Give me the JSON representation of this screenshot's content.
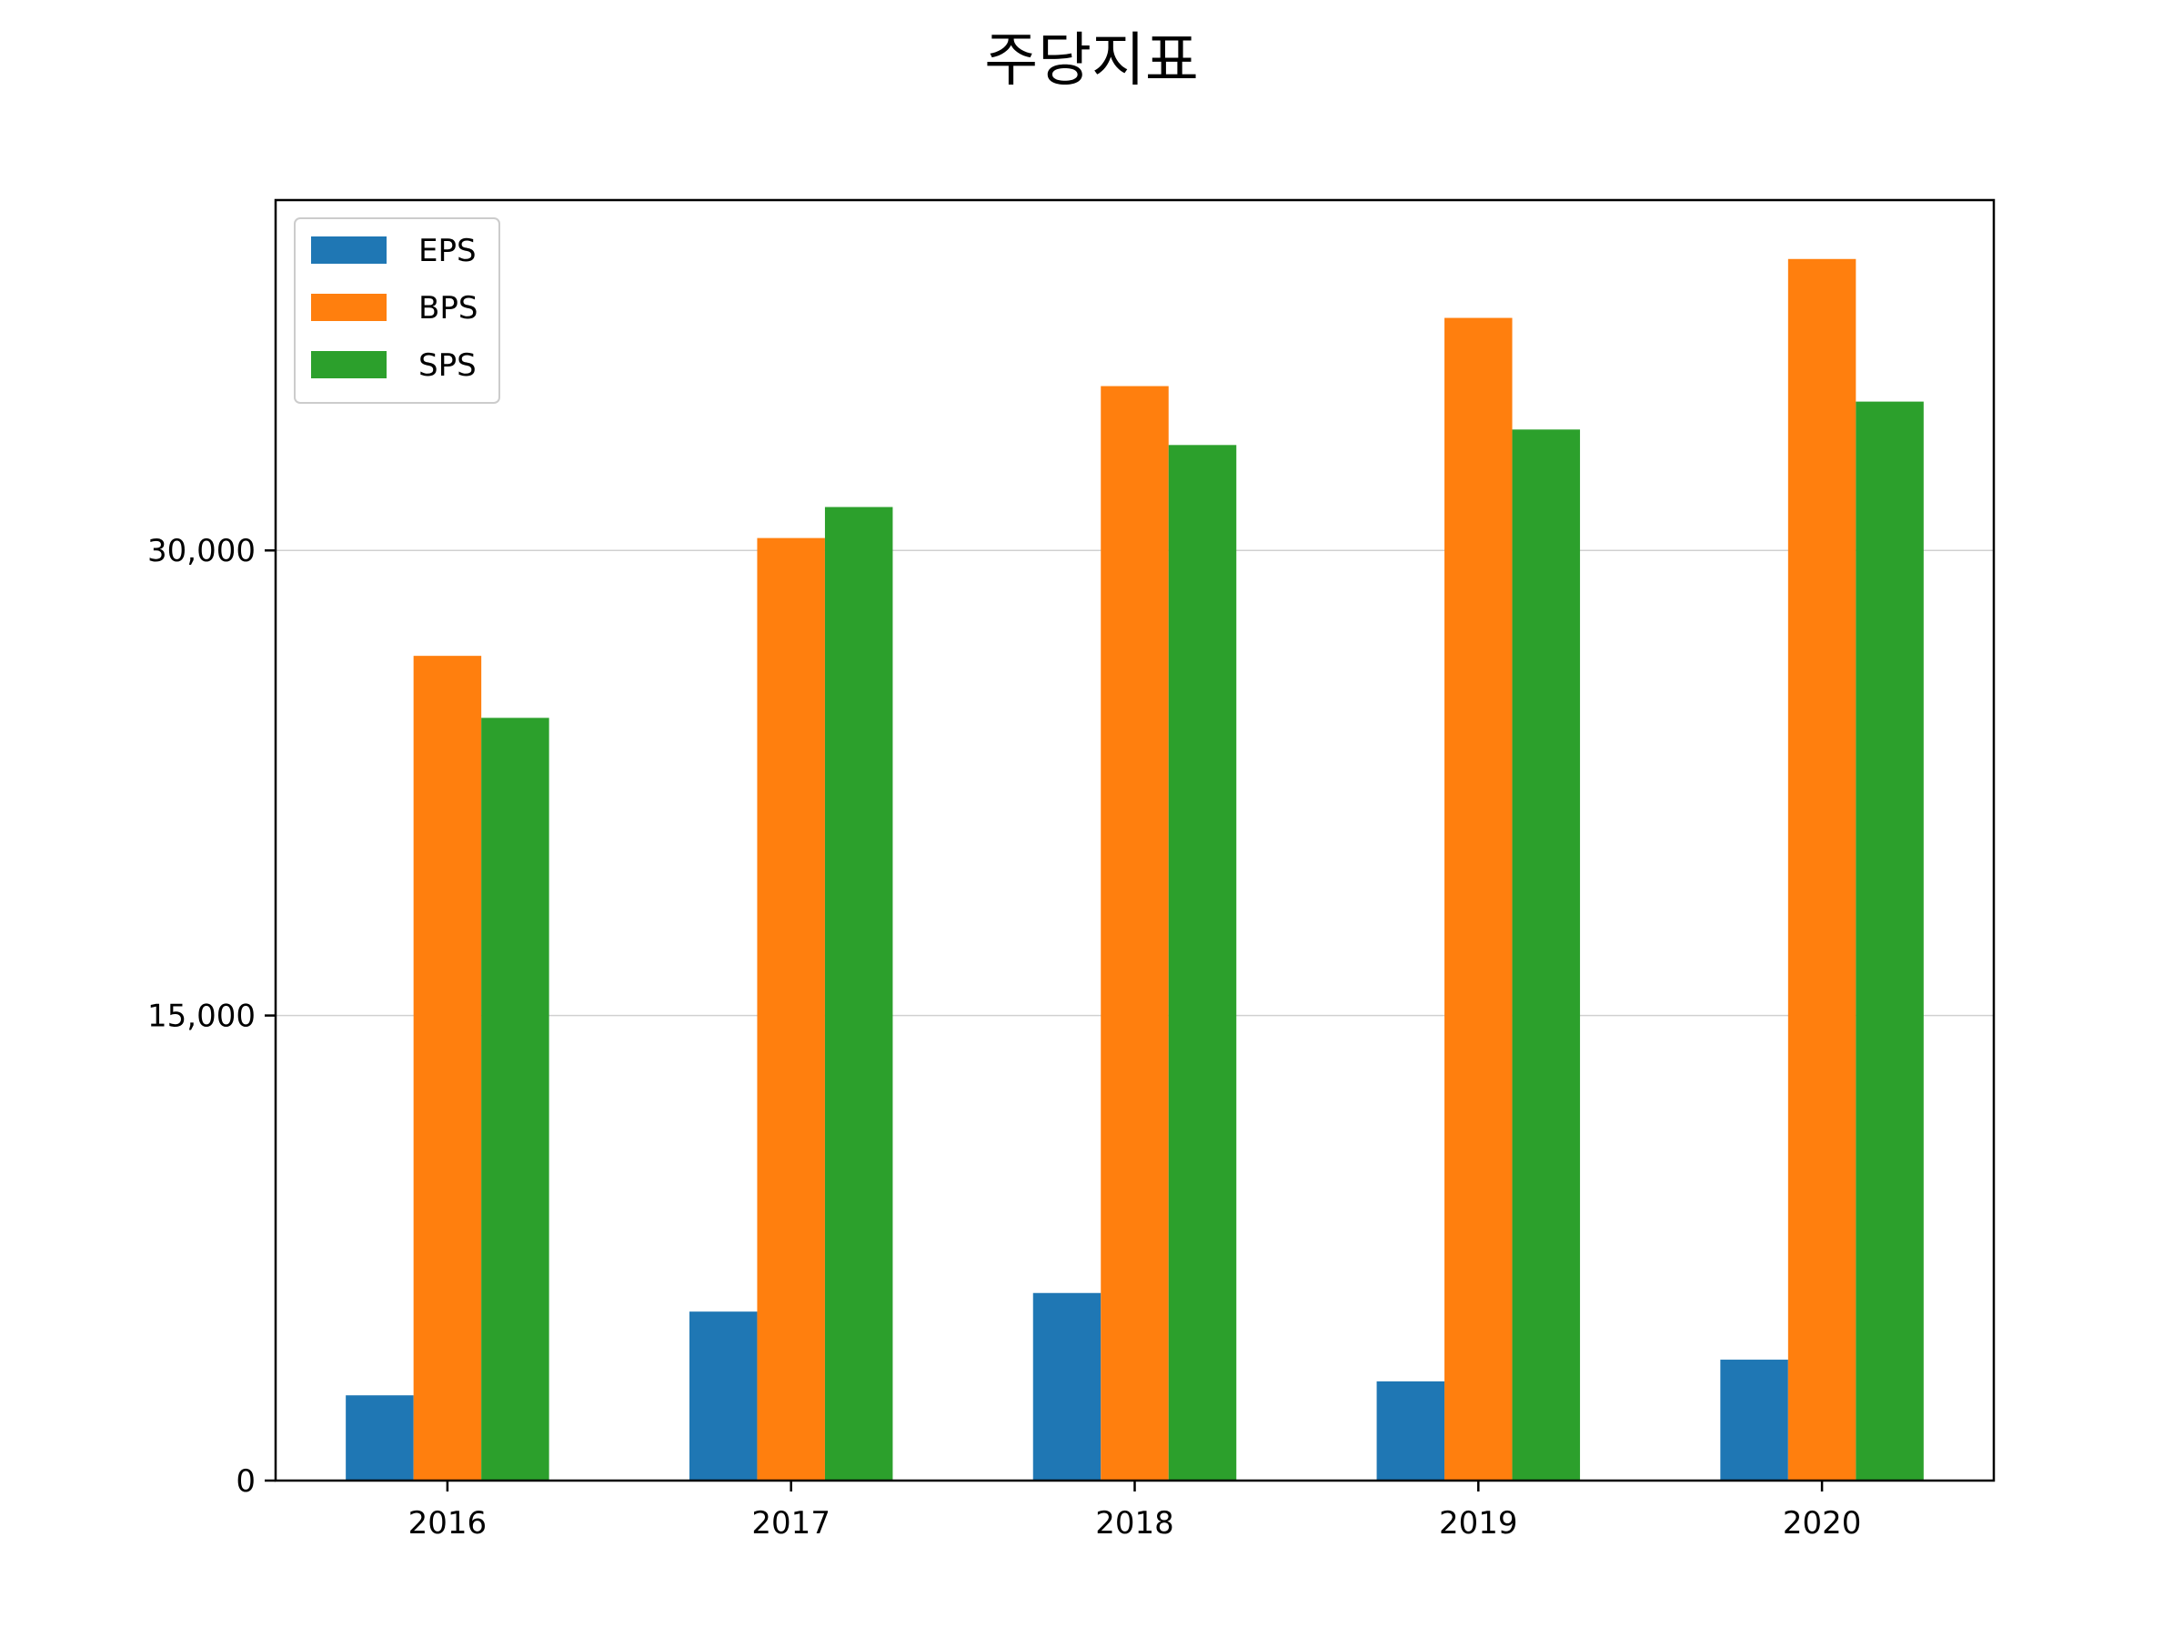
{
  "chart_data": {
    "type": "bar",
    "title": "주당지표",
    "xlabel": "",
    "ylabel": "",
    "categories": [
      "2016",
      "2017",
      "2018",
      "2019",
      "2020"
    ],
    "series": [
      {
        "name": "EPS",
        "color": "#1f77b4",
        "values": [
          2750,
          5450,
          6050,
          3200,
          3900
        ]
      },
      {
        "name": "BPS",
        "color": "#ff7f0e",
        "values": [
          26600,
          30400,
          35300,
          37500,
          39400
        ]
      },
      {
        "name": "SPS",
        "color": "#2ca02c",
        "values": [
          24600,
          31400,
          33400,
          33900,
          34800
        ]
      }
    ],
    "ylim": [
      0,
      41300
    ],
    "yticks": [
      0,
      15000,
      30000
    ],
    "ytick_labels": [
      "0",
      "15,000",
      "30,000"
    ],
    "grid": "y",
    "legend": "top-left"
  }
}
